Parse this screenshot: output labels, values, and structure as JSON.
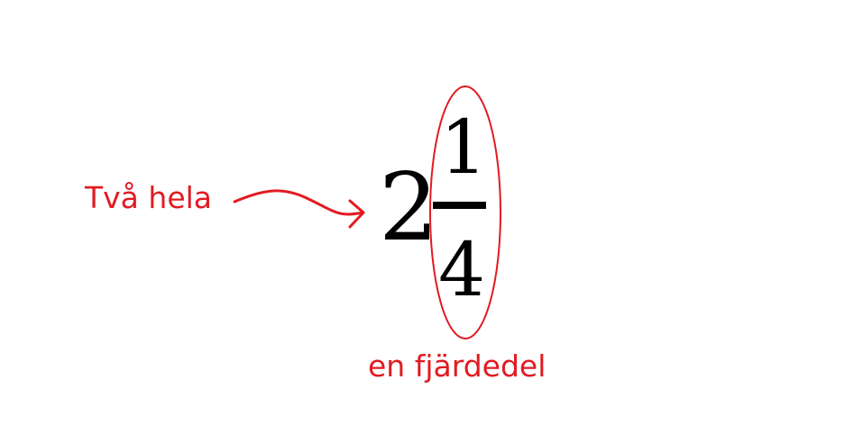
{
  "labels": {
    "whole_part": "Två hela",
    "fraction_part": "en fjärdedel"
  },
  "number": {
    "whole": "2",
    "numerator": "1",
    "denominator": "4"
  },
  "colors": {
    "annotation": "#e11b22",
    "number": "#000000",
    "background": "#ffffff"
  }
}
